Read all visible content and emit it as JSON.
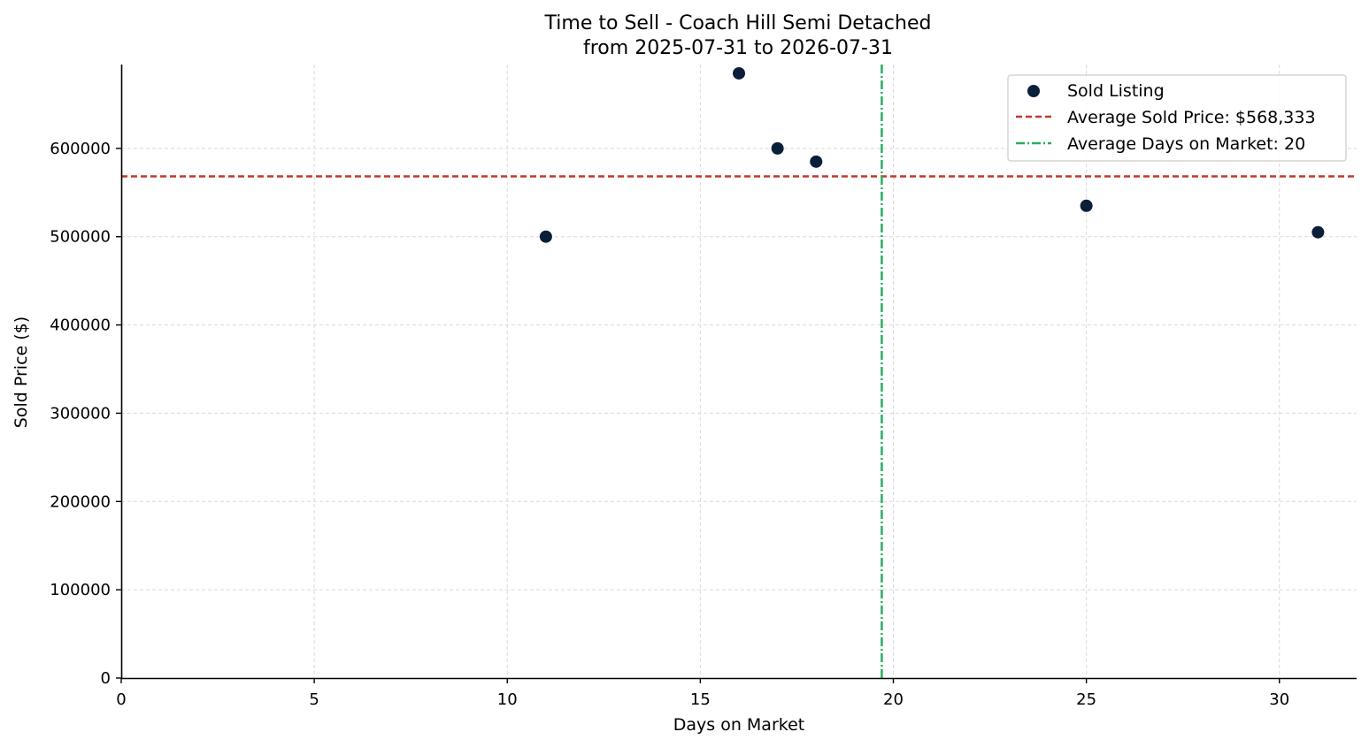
{
  "chart_data": {
    "type": "scatter",
    "title": "Time to Sell - Coach Hill Semi Detached",
    "subtitle": "from 2025-07-31 to 2026-07-31",
    "xlabel": "Days on Market",
    "ylabel": "Sold Price ($)",
    "xlim": [
      0,
      32
    ],
    "ylim": [
      0,
      695000
    ],
    "x_ticks": [
      0,
      5,
      10,
      15,
      20,
      25,
      30
    ],
    "y_ticks": [
      0,
      100000,
      200000,
      300000,
      400000,
      500000,
      600000
    ],
    "grid": true,
    "legend_position": "top-right",
    "series": [
      {
        "name": "Sold Listing",
        "color": "#0b1f3a",
        "points": [
          {
            "x": 11,
            "y": 500000
          },
          {
            "x": 16,
            "y": 685000
          },
          {
            "x": 17,
            "y": 600000
          },
          {
            "x": 18,
            "y": 585000
          },
          {
            "x": 25,
            "y": 535000
          },
          {
            "x": 31,
            "y": 505000
          }
        ]
      }
    ],
    "reference_lines": {
      "avg_price": {
        "label": "Average Sold Price: $568,333",
        "value": 568333,
        "color": "#c0392b",
        "style": "dashed"
      },
      "avg_days": {
        "label": "Average Days on Market: 20",
        "value": 19.7,
        "color": "#27ae60",
        "style": "dash-dot"
      }
    }
  }
}
